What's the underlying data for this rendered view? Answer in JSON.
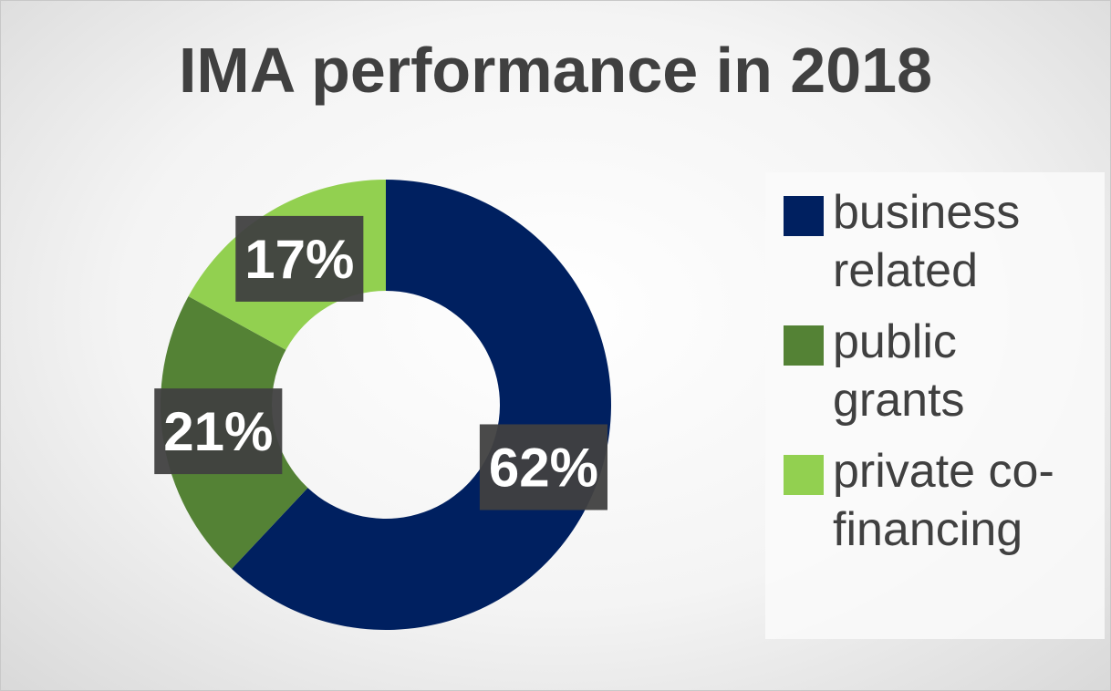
{
  "chart_data": {
    "type": "donut",
    "title": "IMA performance in 2018",
    "categories": [
      "business related",
      "public grants",
      "private co-financing"
    ],
    "values": [
      62,
      21,
      17
    ],
    "value_labels": [
      "62%",
      "21%",
      "17%"
    ],
    "colors": [
      "#002060",
      "#548235",
      "#92d050"
    ],
    "legend": "right"
  }
}
